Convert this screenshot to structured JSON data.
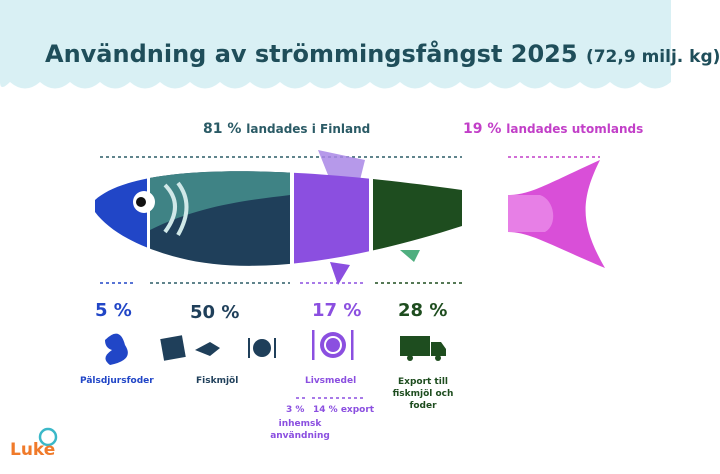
{
  "header": {
    "title": "Användning av strömmingsfångst 2025",
    "subtitle": "(72,9 milj. kg)"
  },
  "split": [
    {
      "share": "81 %",
      "label": "landades i Finland"
    },
    {
      "share": "19 %",
      "label": "landades utomlands"
    }
  ],
  "segments": [
    {
      "share": "5 %",
      "label": "Pälsdjursfoder"
    },
    {
      "share": "50 %",
      "label": "Fiskmjöl"
    },
    {
      "share": "17 %",
      "label": "Livsmedel"
    },
    {
      "share": "28 %",
      "label": "Export till fiskmjöl och foder"
    }
  ],
  "breakdown": [
    {
      "share": "3 %",
      "label": "inhemsk användning"
    },
    {
      "share": "14 %",
      "label": "export"
    }
  ],
  "logo": "Luke"
}
